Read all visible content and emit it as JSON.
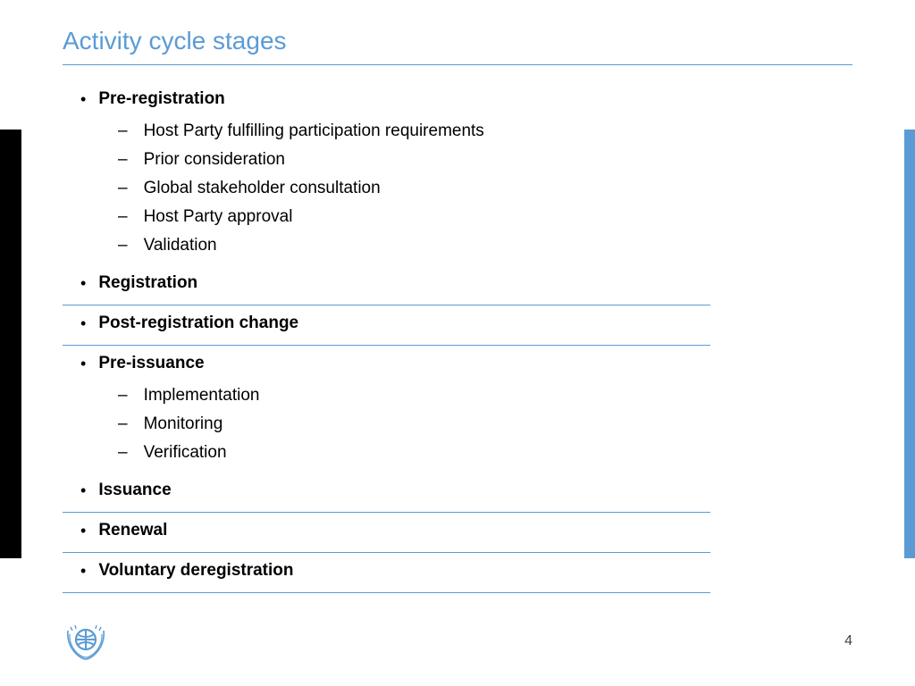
{
  "colors": {
    "accent": "#5b9bd5",
    "text": "#000000",
    "left_bar": "#000000",
    "right_bar": "#5b9bd5",
    "divider": "#5b9bd5",
    "background": "#ffffff"
  },
  "typography": {
    "title_fontsize": 28,
    "stage_fontsize": 19,
    "sub_fontsize": 19,
    "font_family": "Arial"
  },
  "title": "Activity cycle stages",
  "page_number": "4",
  "stages": [
    {
      "label": "Pre-registration",
      "divider_after": false,
      "sub": [
        "Host Party fulfilling participation requirements",
        "Prior consideration",
        "Global stakeholder consultation",
        "Host Party approval",
        "Validation"
      ]
    },
    {
      "label": "Registration",
      "divider_after": true,
      "sub": []
    },
    {
      "label": "Post-registration change",
      "divider_after": true,
      "sub": []
    },
    {
      "label": "Pre-issuance",
      "divider_after": false,
      "sub": [
        "Implementation",
        "Monitoring",
        "Verification"
      ]
    },
    {
      "label": "Issuance",
      "divider_after": true,
      "sub": []
    },
    {
      "label": "Renewal",
      "divider_after": true,
      "sub": []
    },
    {
      "label": "Voluntary deregistration",
      "divider_after": true,
      "sub": []
    }
  ],
  "logo": {
    "name": "unfccc-logo",
    "color": "#5b9bd5"
  }
}
